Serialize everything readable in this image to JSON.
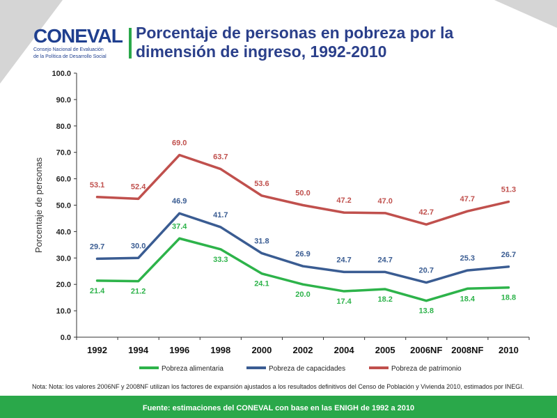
{
  "logo": {
    "wordmark": "CONEVAL",
    "subtitle_line1": "Consejo Nacional de Evaluación",
    "subtitle_line2": "de la Política de Desarrollo Social"
  },
  "note": "Nota: Nota: los valores 2006NF y 2008NF utilizan los factores de expansión ajustados a los resultados definitivos del Censo de Población y Vivienda 2010, estimados por INEGI.",
  "footer": "Fuente: estimaciones del CONEVAL con base en las ENIGH de 1992 a  2010",
  "colors": {
    "accent_green": "#2aa84a",
    "title_blue": "#2a3f8a"
  },
  "chart_data": {
    "type": "line",
    "title": "Porcentaje de personas en pobreza por la dimensión de ingreso, 1992-2010",
    "title_line1": "Porcentaje de personas en pobreza por la",
    "title_line2": "dimensión de ingreso, 1992-2010",
    "xlabel": "",
    "ylabel": "Porcentaje de personas",
    "ylim": [
      0,
      100
    ],
    "yticks": [
      "0.0",
      "10.0",
      "20.0",
      "30.0",
      "40.0",
      "50.0",
      "60.0",
      "70.0",
      "80.0",
      "90.0",
      "100.0"
    ],
    "grid": false,
    "legend_position": "bottom",
    "categories": [
      "1992",
      "1994",
      "1996",
      "1998",
      "2000",
      "2002",
      "2004",
      "2005",
      "2006NF",
      "2008NF",
      "2010"
    ],
    "series": [
      {
        "name": "Pobreza alimentaria",
        "color": "#2db34a",
        "values": [
          21.4,
          21.2,
          37.4,
          33.3,
          24.1,
          20.0,
          17.4,
          18.2,
          13.8,
          18.4,
          18.8
        ],
        "labels": [
          "21.4",
          "21.2",
          "37.4",
          "33.3",
          "24.1",
          "20.0",
          "17.4",
          "18.2",
          "13.8",
          "18.4",
          "18.8"
        ]
      },
      {
        "name": "Pobreza de capacidades",
        "color": "#3a5c92",
        "values": [
          29.7,
          30.0,
          46.9,
          41.7,
          31.8,
          26.9,
          24.7,
          24.7,
          20.7,
          25.3,
          26.7
        ],
        "labels": [
          "29.7",
          "30.0",
          "46.9",
          "41.7",
          "31.8",
          "26.9",
          "24.7",
          "24.7",
          "20.7",
          "25.3",
          "26.7"
        ]
      },
      {
        "name": "Pobreza de patrimonio",
        "color": "#c0504d",
        "values": [
          53.1,
          52.4,
          69.0,
          63.7,
          53.6,
          50.0,
          47.2,
          47.0,
          42.7,
          47.7,
          51.3
        ],
        "labels": [
          "53.1",
          "52.4",
          "69.0",
          "63.7",
          "53.6",
          "50.0",
          "47.2",
          "47.0",
          "42.7",
          "47.7",
          "51.3"
        ]
      }
    ]
  }
}
